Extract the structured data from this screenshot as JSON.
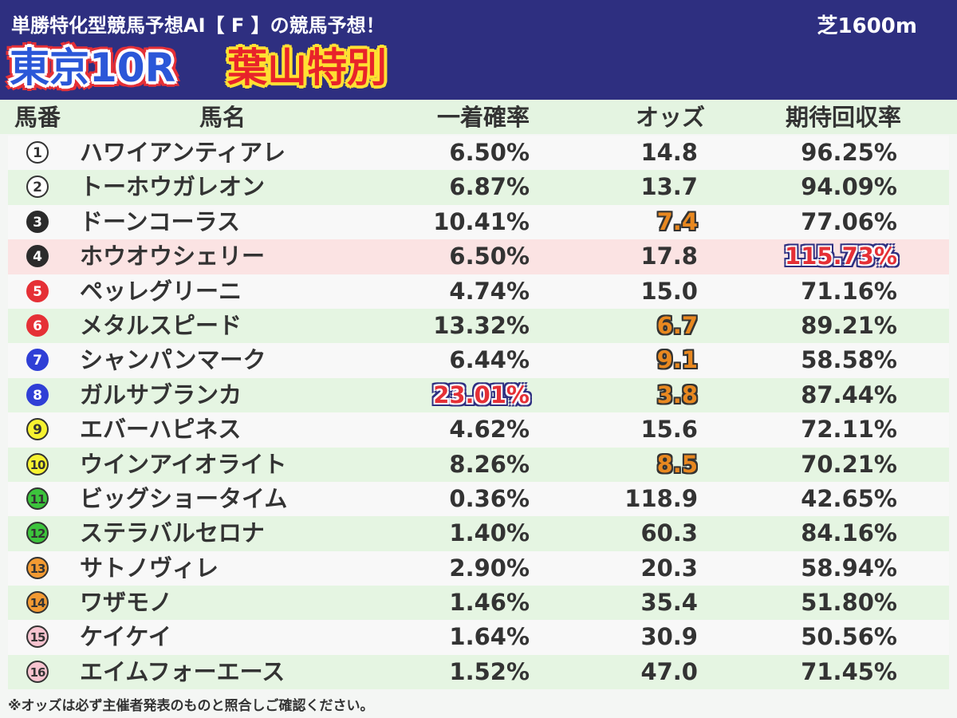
{
  "header": {
    "subtitle": "単勝特化型競馬予想AI【 F 】の競馬予想！",
    "surface": "芝1600m",
    "race": "東京10R",
    "race_name": "葉山特別"
  },
  "columns": [
    "馬番",
    "馬名",
    "一着確率",
    "オッズ",
    "期待回収率"
  ],
  "colors": {
    "header_bg": "#2e2f80",
    "row_alt": "#e5f5e2",
    "row_highlight": "#fbe3e3",
    "accent_orange": "#e88820",
    "accent_red": "#e53036"
  },
  "rows": [
    {
      "num": "1",
      "name": "ハワイアンティアレ",
      "prob": "6.50%",
      "odds": "14.8",
      "exp": "96.25%",
      "num_bg": "#ffffff",
      "num_fg": "#333333",
      "num_border": "#333333"
    },
    {
      "num": "2",
      "name": "トーホウガレオン",
      "prob": "6.87%",
      "odds": "13.7",
      "exp": "94.09%",
      "num_bg": "#ffffff",
      "num_fg": "#333333",
      "num_border": "#333333"
    },
    {
      "num": "3",
      "name": "ドーンコーラス",
      "prob": "10.41%",
      "odds": "7.4",
      "exp": "77.06%",
      "num_bg": "#2b2b2b",
      "num_fg": "#ffffff",
      "num_border": "#2b2b2b",
      "odds_hl": true
    },
    {
      "num": "4",
      "name": "ホウオウシェリー",
      "prob": "6.50%",
      "odds": "17.8",
      "exp": "115.73%",
      "num_bg": "#2b2b2b",
      "num_fg": "#ffffff",
      "num_border": "#2b2b2b",
      "row_hl": true,
      "exp_hl": true
    },
    {
      "num": "5",
      "name": "ペッレグリーニ",
      "prob": "4.74%",
      "odds": "15.0",
      "exp": "71.16%",
      "num_bg": "#e53036",
      "num_fg": "#ffffff",
      "num_border": "#e53036"
    },
    {
      "num": "6",
      "name": "メタルスピード",
      "prob": "13.32%",
      "odds": "6.7",
      "exp": "89.21%",
      "num_bg": "#e53036",
      "num_fg": "#ffffff",
      "num_border": "#e53036",
      "odds_hl": true
    },
    {
      "num": "7",
      "name": "シャンパンマーク",
      "prob": "6.44%",
      "odds": "9.1",
      "exp": "58.58%",
      "num_bg": "#2f3fd6",
      "num_fg": "#ffffff",
      "num_border": "#2f3fd6",
      "odds_hl": true
    },
    {
      "num": "8",
      "name": "ガルサブランカ",
      "prob": "23.01%",
      "odds": "3.8",
      "exp": "87.44%",
      "num_bg": "#2f3fd6",
      "num_fg": "#ffffff",
      "num_border": "#2f3fd6",
      "odds_hl": true,
      "prob_hl": true
    },
    {
      "num": "9",
      "name": "エバーハピネス",
      "prob": "4.62%",
      "odds": "15.6",
      "exp": "72.11%",
      "num_bg": "#f6f230",
      "num_fg": "#333333",
      "num_border": "#333333"
    },
    {
      "num": "10",
      "name": "ウインアイオライト",
      "prob": "8.26%",
      "odds": "8.5",
      "exp": "70.21%",
      "num_bg": "#f6f230",
      "num_fg": "#333333",
      "num_border": "#333333",
      "odds_hl": true
    },
    {
      "num": "11",
      "name": "ビッグショータイム",
      "prob": "0.36%",
      "odds": "118.9",
      "exp": "42.65%",
      "num_bg": "#3cc43c",
      "num_fg": "#333333",
      "num_border": "#333333"
    },
    {
      "num": "12",
      "name": "ステラバルセロナ",
      "prob": "1.40%",
      "odds": "60.3",
      "exp": "84.16%",
      "num_bg": "#3cc43c",
      "num_fg": "#333333",
      "num_border": "#333333"
    },
    {
      "num": "13",
      "name": "サトノヴィレ",
      "prob": "2.90%",
      "odds": "20.3",
      "exp": "58.94%",
      "num_bg": "#f29a32",
      "num_fg": "#333333",
      "num_border": "#333333"
    },
    {
      "num": "14",
      "name": "ワザモノ",
      "prob": "1.46%",
      "odds": "35.4",
      "exp": "51.80%",
      "num_bg": "#f29a32",
      "num_fg": "#333333",
      "num_border": "#333333"
    },
    {
      "num": "15",
      "name": "ケイケイ",
      "prob": "1.64%",
      "odds": "30.9",
      "exp": "50.56%",
      "num_bg": "#f7c3cf",
      "num_fg": "#333333",
      "num_border": "#333333"
    },
    {
      "num": "16",
      "name": "エイムフォーエース",
      "prob": "1.52%",
      "odds": "47.0",
      "exp": "71.45%",
      "num_bg": "#f7c3cf",
      "num_fg": "#333333",
      "num_border": "#333333"
    }
  ],
  "footer": "※オッズは必ず主催者発表のものと照合しご確認ください。"
}
